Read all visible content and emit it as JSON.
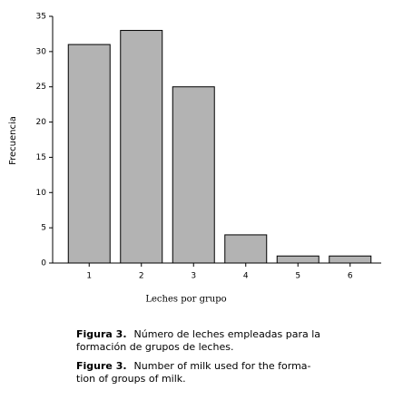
{
  "chart_data": {
    "type": "bar",
    "categories": [
      "1",
      "2",
      "3",
      "4",
      "5",
      "6"
    ],
    "values": [
      31,
      33,
      25,
      4,
      1,
      1
    ],
    "color": "#b3b3b3",
    "ylim": [
      0,
      35
    ],
    "yticks": [
      0,
      5,
      10,
      15,
      20,
      25,
      30,
      35
    ],
    "x_label": "Leches por grupo",
    "y_label": "Frecuencia",
    "grid": false
  },
  "captions": [
    {
      "label": "Figura 3.",
      "lines": [
        "Número de leches empleadas para la",
        "formación de grupos de leches."
      ]
    },
    {
      "label": "Figure 3.",
      "lines": [
        "Number of milk used for the forma-",
        "tion of groups of milk."
      ]
    }
  ]
}
